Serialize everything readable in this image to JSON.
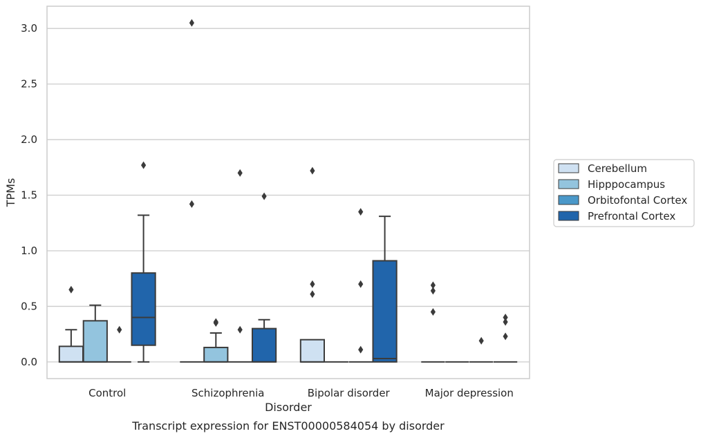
{
  "caption": "Transcript expression for ENST00000584054 by disorder",
  "chart_data": {
    "type": "boxplot",
    "xlabel": "Disorder",
    "ylabel": "TPMs",
    "categories": [
      "Control",
      "Schizophrenia",
      "Bipolar disorder",
      "Major depression"
    ],
    "ylim": [
      -0.15,
      3.2
    ],
    "yticks": [
      0.0,
      0.5,
      1.0,
      1.5,
      2.0,
      2.5,
      3.0
    ],
    "ytick_labels": [
      "0.0",
      "0.5",
      "1.0",
      "1.5",
      "2.0",
      "2.5",
      "3.0"
    ],
    "grid": true,
    "legend_position": "right",
    "series": [
      {
        "name": "Cerebellum",
        "color": "#cfe1f2",
        "boxes": [
          {
            "q1": 0.0,
            "median": 0.0,
            "q3": 0.14,
            "whislo": 0.0,
            "whishi": 0.29,
            "fliers": [
              0.65
            ]
          },
          {
            "q1": 0.0,
            "median": 0.0,
            "q3": 0.0,
            "whislo": 0.0,
            "whishi": 0.0,
            "fliers": [
              3.05,
              1.42
            ]
          },
          {
            "q1": 0.0,
            "median": 0.0,
            "q3": 0.2,
            "whislo": 0.0,
            "whishi": 0.2,
            "fliers": [
              1.72,
              0.7,
              0.61
            ]
          },
          {
            "q1": 0.0,
            "median": 0.0,
            "q3": 0.0,
            "whislo": 0.0,
            "whishi": 0.0,
            "fliers": [
              0.69,
              0.64,
              0.45
            ]
          }
        ]
      },
      {
        "name": "Hipppocampus",
        "color": "#93c4de",
        "boxes": [
          {
            "q1": 0.0,
            "median": 0.0,
            "q3": 0.37,
            "whislo": 0.0,
            "whishi": 0.51,
            "fliers": []
          },
          {
            "q1": 0.0,
            "median": 0.0,
            "q3": 0.13,
            "whislo": 0.0,
            "whishi": 0.26,
            "fliers": [
              0.36,
              0.35
            ]
          },
          {
            "q1": 0.0,
            "median": 0.0,
            "q3": 0.0,
            "whislo": 0.0,
            "whishi": 0.0,
            "fliers": []
          },
          {
            "q1": 0.0,
            "median": 0.0,
            "q3": 0.0,
            "whislo": 0.0,
            "whishi": 0.0,
            "fliers": []
          }
        ]
      },
      {
        "name": "Orbitofontal Cortex",
        "color": "#4a98c9",
        "boxes": [
          {
            "q1": 0.0,
            "median": 0.0,
            "q3": 0.0,
            "whislo": 0.0,
            "whishi": 0.0,
            "fliers": [
              0.29
            ]
          },
          {
            "q1": 0.0,
            "median": 0.0,
            "q3": 0.0,
            "whislo": 0.0,
            "whishi": 0.0,
            "fliers": [
              1.7,
              0.29
            ]
          },
          {
            "q1": 0.0,
            "median": 0.0,
            "q3": 0.0,
            "whislo": 0.0,
            "whishi": 0.0,
            "fliers": [
              1.35,
              0.7,
              0.11
            ]
          },
          {
            "q1": 0.0,
            "median": 0.0,
            "q3": 0.0,
            "whislo": 0.0,
            "whishi": 0.0,
            "fliers": [
              0.19
            ]
          }
        ]
      },
      {
        "name": "Prefrontal Cortex",
        "color": "#2165ab",
        "boxes": [
          {
            "q1": 0.15,
            "median": 0.4,
            "q3": 0.8,
            "whislo": 0.0,
            "whishi": 1.32,
            "fliers": [
              1.77
            ]
          },
          {
            "q1": 0.0,
            "median": 0.0,
            "q3": 0.3,
            "whislo": 0.0,
            "whishi": 0.38,
            "fliers": [
              1.49
            ]
          },
          {
            "q1": 0.0,
            "median": 0.03,
            "q3": 0.91,
            "whislo": 0.0,
            "whishi": 1.31,
            "fliers": []
          },
          {
            "q1": 0.0,
            "median": 0.0,
            "q3": 0.0,
            "whislo": 0.0,
            "whishi": 0.0,
            "fliers": [
              0.4,
              0.36,
              0.23
            ]
          }
        ]
      }
    ]
  }
}
